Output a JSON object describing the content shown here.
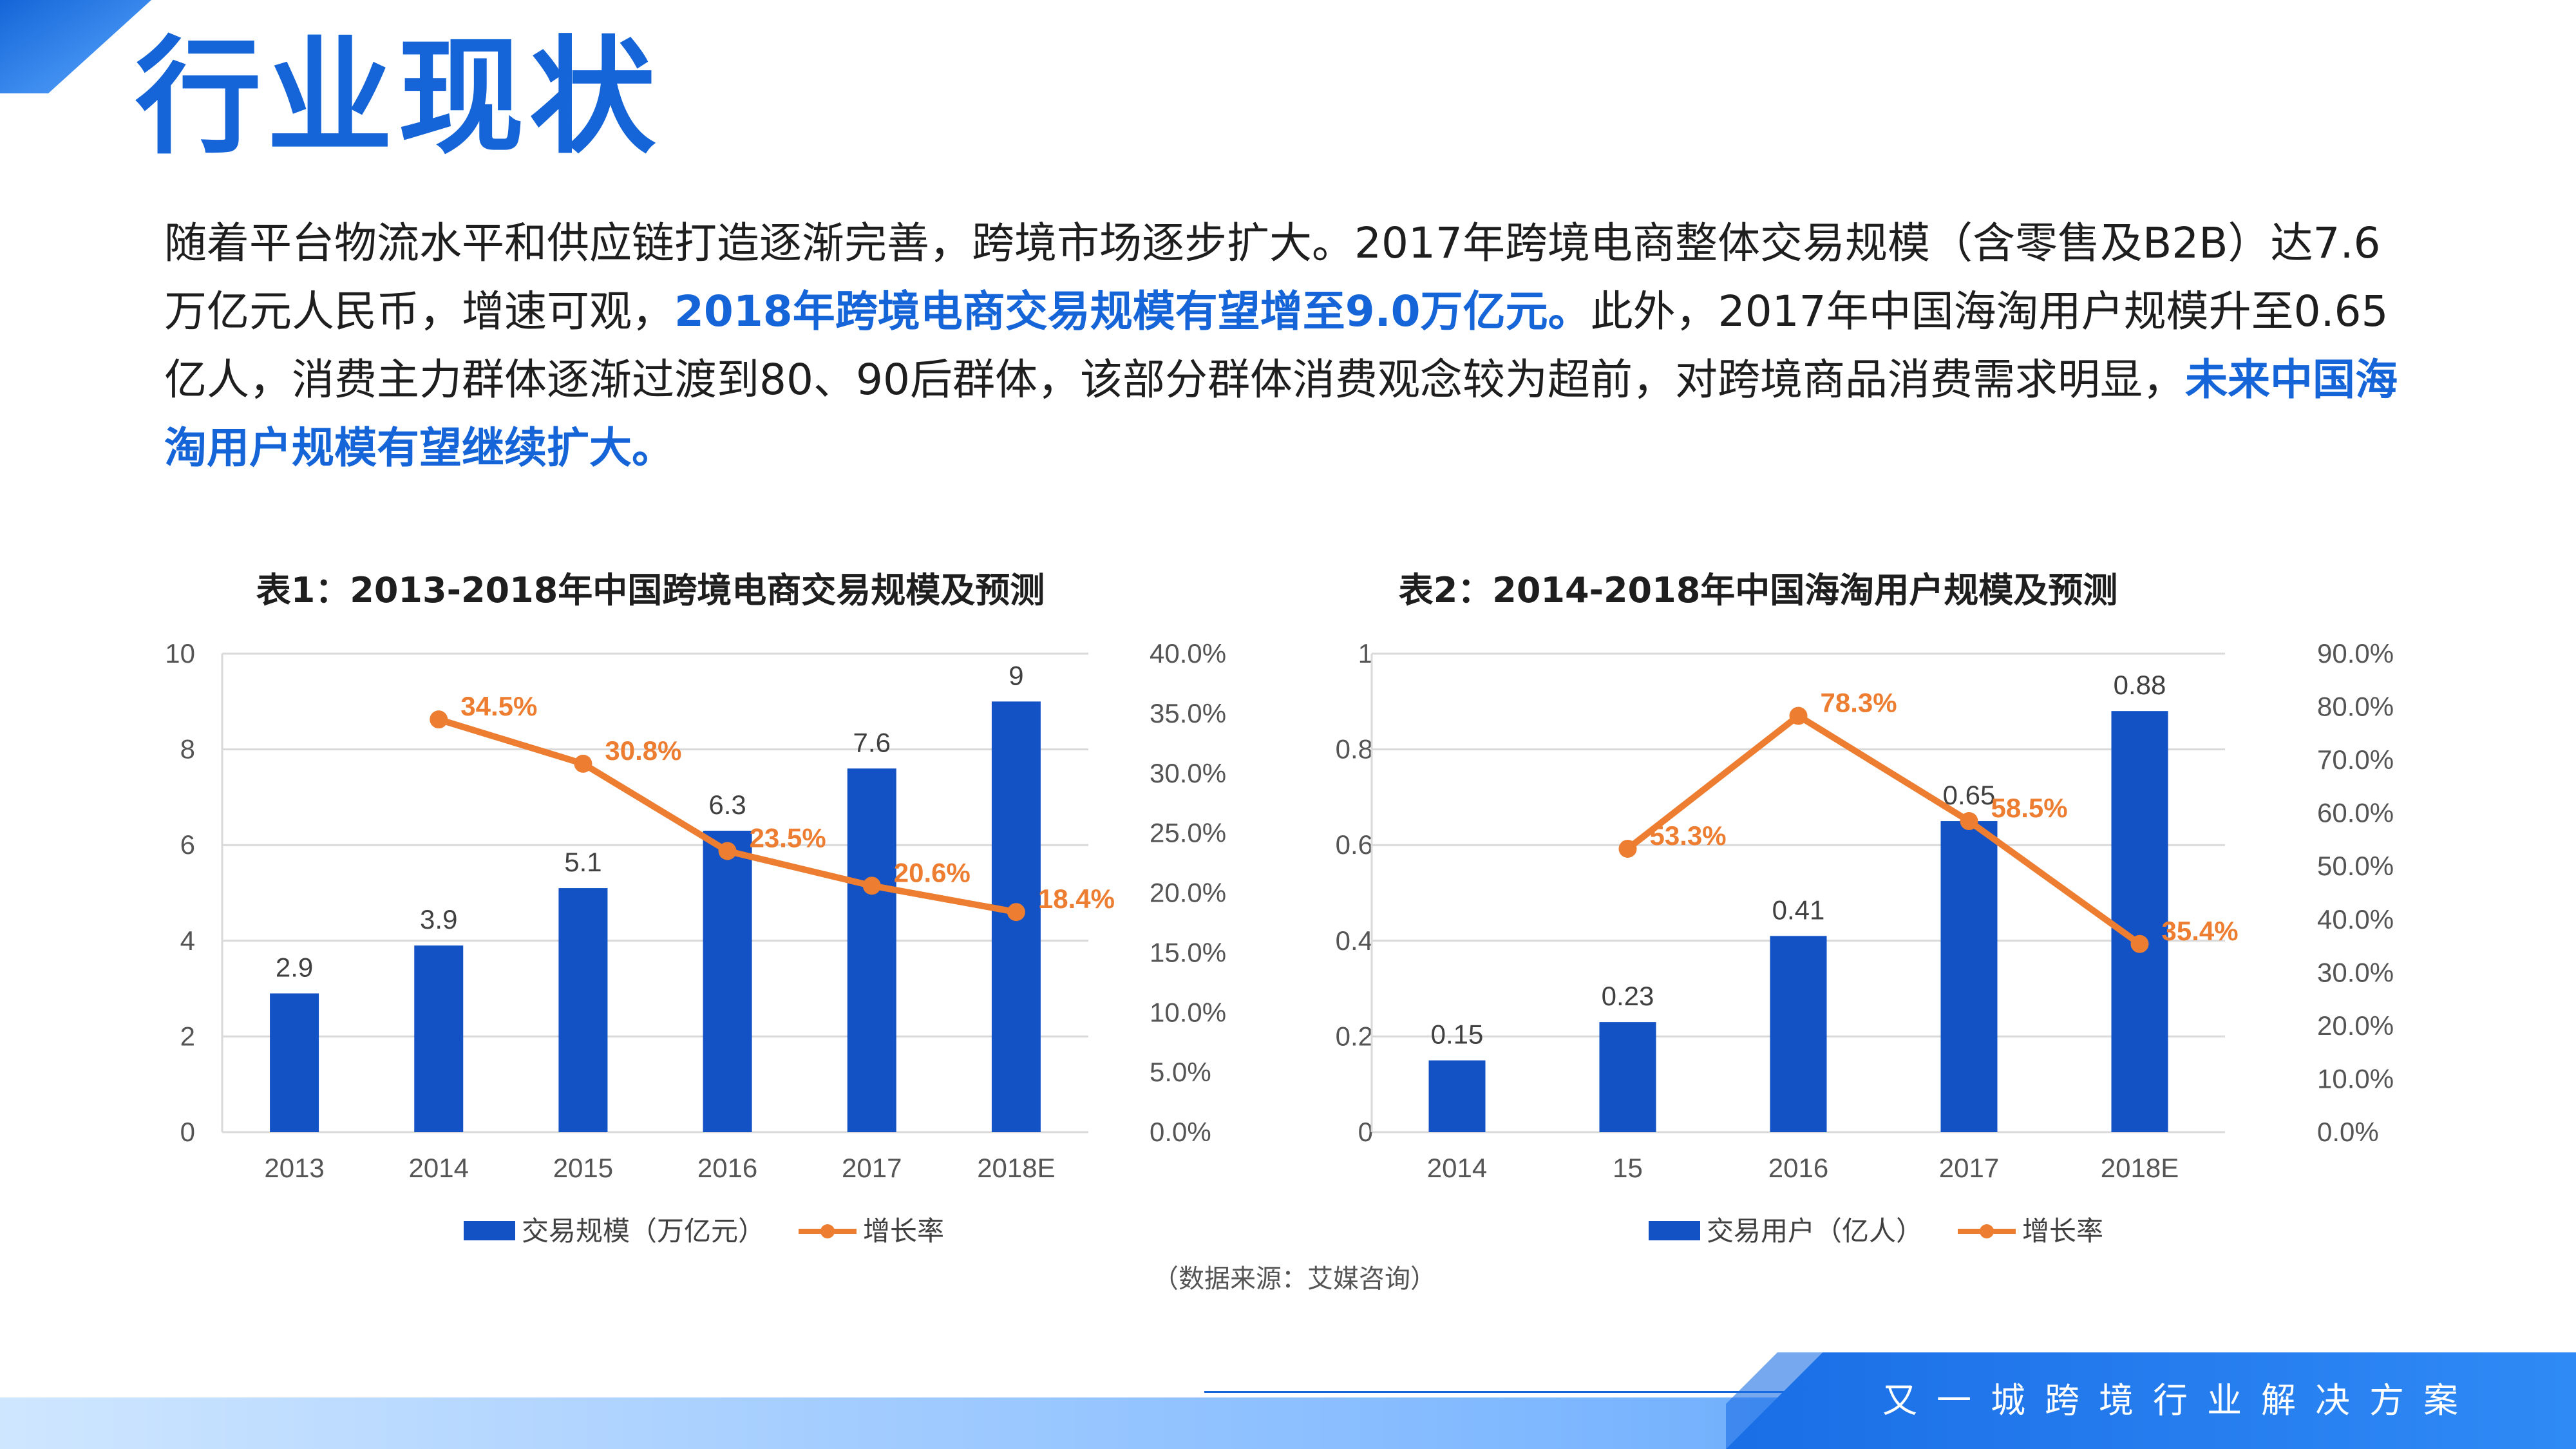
{
  "title": "行业现状",
  "intro": {
    "part1": "随着平台物流水平和供应链打造逐渐完善，跨境市场逐步扩大。2017年跨境电商整体交易规模（含零售及B2B）达7.6万亿元人民币，增速可观，",
    "highlight1": "2018年跨境电商交易规模有望增至9.0万亿元。",
    "part2": "此外，2017年中国海淘用户规模升至0.65亿人，消费主力群体逐渐过渡到80、90后群体，该部分群体消费观念较为超前，对跨境商品消费需求明显，",
    "highlight2": "未来中国海淘用户规模有望继续扩大。"
  },
  "source": "（数据来源：艾媒咨询）",
  "footer": "又一城跨境行业解决方案",
  "colors": {
    "accent": "#1565d8",
    "bar": "#1352c4",
    "line": "#ed7d31",
    "text": "#1e1e1e"
  },
  "chart_data": [
    {
      "type": "bar",
      "title": "表1：2013-2018年中国跨境电商交易规模及预测",
      "categories": [
        "2013",
        "2014",
        "2015",
        "2016",
        "2017",
        "2018E"
      ],
      "ylim": [
        0,
        10
      ],
      "y_ticks": [
        "0",
        "2",
        "4",
        "6",
        "8",
        "10"
      ],
      "y2lim": [
        0,
        40
      ],
      "y2_ticks": [
        "0.0%",
        "5.0%",
        "10.0%",
        "15.0%",
        "20.0%",
        "25.0%",
        "30.0%",
        "35.0%",
        "40.0%"
      ],
      "bar_labels": [
        "2.9",
        "3.9",
        "5.1",
        "6.3",
        "7.6",
        "9"
      ],
      "rate_labels": [
        "34.5%",
        "30.8%",
        "23.5%",
        "20.6%",
        "18.4%"
      ],
      "grid": true,
      "legend_position": "bottom",
      "series": [
        {
          "name": "交易规模（万亿元）",
          "type": "bar",
          "axis": "left",
          "values": [
            2.9,
            3.9,
            5.1,
            6.3,
            7.6,
            9
          ]
        },
        {
          "name": "增长率",
          "type": "line",
          "axis": "right",
          "values": [
            null,
            34.5,
            30.8,
            23.5,
            20.6,
            18.4
          ]
        }
      ]
    },
    {
      "type": "bar",
      "title": "表2：2014-2018年中国海淘用户规模及预测",
      "categories": [
        "2014",
        "15",
        "2016",
        "2017",
        "2018E"
      ],
      "ylim": [
        0,
        1
      ],
      "y_ticks": [
        "0",
        "0.2",
        "0.4",
        "0.6",
        "0.8",
        "1"
      ],
      "y2lim": [
        0,
        90
      ],
      "y2_ticks": [
        "0.0%",
        "10.0%",
        "20.0%",
        "30.0%",
        "40.0%",
        "50.0%",
        "60.0%",
        "70.0%",
        "80.0%",
        "90.0%"
      ],
      "bar_labels": [
        "0.15",
        "0.23",
        "0.41",
        "0.65",
        "0.88"
      ],
      "rate_labels": [
        "53.3%",
        "78.3%",
        "58.5%",
        "35.4%"
      ],
      "grid": true,
      "legend_position": "bottom",
      "series": [
        {
          "name": "交易用户（亿人）",
          "type": "bar",
          "axis": "left",
          "values": [
            0.15,
            0.23,
            0.41,
            0.65,
            0.88
          ]
        },
        {
          "name": "增长率",
          "type": "line",
          "axis": "right",
          "values": [
            null,
            53.3,
            78.3,
            58.5,
            35.4
          ]
        }
      ]
    }
  ]
}
